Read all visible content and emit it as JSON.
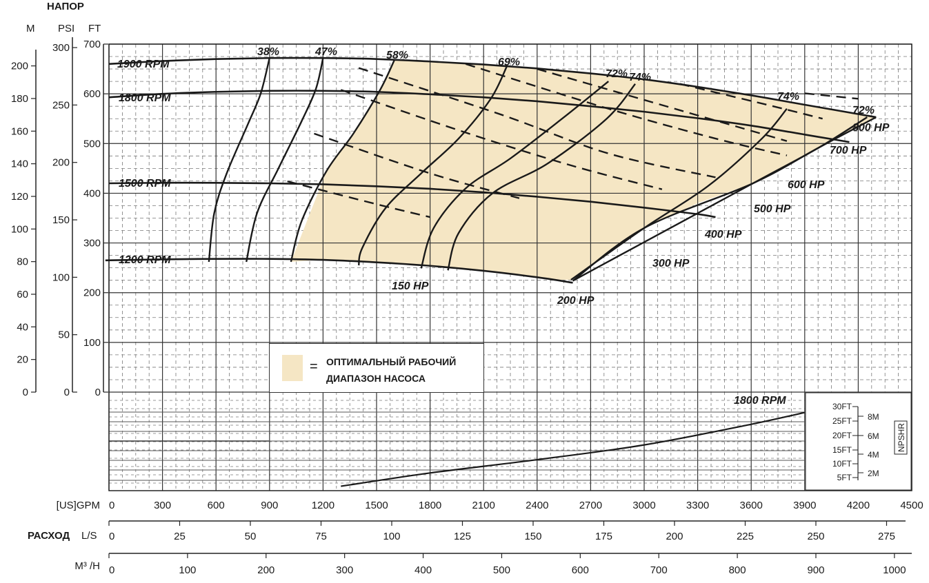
{
  "chart_data": {
    "type": "line",
    "title": "",
    "head_label": "НАПОР",
    "flow_label": "РАСХОД",
    "head_units": {
      "m": "M",
      "psi": "PSI",
      "ft": "FT"
    },
    "flow_units": {
      "gpm": "[US]GPM",
      "ls": "L/S",
      "m3h": "M³ /H"
    },
    "xlim_gpm": [
      0,
      4500
    ],
    "ylim_ft": [
      0,
      700
    ],
    "grid": true,
    "ft_ticks": [
      "0",
      "100",
      "200",
      "300",
      "400",
      "500",
      "600",
      "700"
    ],
    "ft_tick_values": [
      0,
      100,
      200,
      300,
      400,
      500,
      600,
      700
    ],
    "psi_ticks": [
      "0",
      "50",
      "100",
      "150",
      "200",
      "250",
      "300"
    ],
    "psi_tick_values": [
      0,
      50,
      100,
      150,
      200,
      250,
      300
    ],
    "m_ticks": [
      "0",
      "20",
      "40",
      "60",
      "80",
      "100",
      "120",
      "140",
      "160",
      "180",
      "200"
    ],
    "m_tick_values": [
      0,
      20,
      40,
      60,
      80,
      100,
      120,
      140,
      160,
      180,
      200
    ],
    "gpm_ticks": [
      "0",
      "300",
      "600",
      "900",
      "1200",
      "1500",
      "1800",
      "2100",
      "2400",
      "2700",
      "3000",
      "3300",
      "3600",
      "3900",
      "4200",
      "4500"
    ],
    "gpm_tick_values": [
      0,
      300,
      600,
      900,
      1200,
      1500,
      1800,
      2100,
      2400,
      2700,
      3000,
      3300,
      3600,
      3900,
      4200,
      4500
    ],
    "ls_ticks": [
      "0",
      "25",
      "50",
      "75",
      "100",
      "125",
      "150",
      "175",
      "200",
      "225",
      "250",
      "275"
    ],
    "ls_tick_values": [
      0,
      25,
      50,
      75,
      100,
      125,
      150,
      175,
      200,
      225,
      250,
      275
    ],
    "m3h_ticks": [
      "0",
      "100",
      "200",
      "300",
      "400",
      "500",
      "600",
      "700",
      "800",
      "900",
      "1000"
    ],
    "m3h_tick_values": [
      0,
      100,
      200,
      300,
      400,
      500,
      600,
      700,
      800,
      900,
      1000
    ],
    "rpm_curves": [
      {
        "name": "1900 RPM",
        "x": [
          0,
          300,
          600,
          900,
          1200,
          1500,
          1800,
          2100,
          2400,
          2700,
          3000,
          3300,
          3600,
          3900,
          4300
        ],
        "y": [
          660,
          666,
          670,
          672,
          672,
          670,
          665,
          659,
          651,
          641,
          629,
          614,
          597,
          578,
          553
        ]
      },
      {
        "name": "1800 RPM",
        "x": [
          0,
          300,
          600,
          900,
          1200,
          1500,
          1800,
          2100,
          2400,
          2700,
          3000,
          3300,
          3600,
          3900,
          4150
        ],
        "y": [
          593,
          600,
          604,
          606,
          606,
          604,
          599,
          593,
          585,
          575,
          564,
          551,
          536,
          518,
          503
        ]
      },
      {
        "name": "1500 RPM",
        "x": [
          0,
          300,
          600,
          900,
          1200,
          1500,
          1800,
          2100,
          2400,
          2700,
          3000,
          3300,
          3400
        ],
        "y": [
          420,
          421,
          421,
          420,
          418,
          414,
          409,
          402,
          393,
          383,
          371,
          358,
          352
        ]
      },
      {
        "name": "1200 RPM",
        "x": [
          -20,
          300,
          600,
          900,
          1200,
          1500,
          1800,
          2100,
          2400,
          2600
        ],
        "y": [
          265,
          267,
          268,
          268,
          266,
          261,
          254,
          244,
          231,
          220
        ]
      }
    ],
    "hp_labels": [
      "150 HP",
      "200 HP",
      "300 HP",
      "400 HP",
      "500 HP",
      "600 HP",
      "700 HP",
      "800 HP"
    ],
    "hp_curves": [
      {
        "name": "150 HP",
        "x": [
          1000,
          1500,
          1800
        ],
        "y": [
          424,
          378,
          352
        ]
      },
      {
        "name": "200 HP",
        "x": [
          1150,
          1800,
          2300
        ],
        "y": [
          520,
          440,
          390
        ]
      },
      {
        "name": "300 HP",
        "x": [
          1300,
          2000,
          2600,
          3100
        ],
        "y": [
          608,
          522,
          455,
          408
        ]
      },
      {
        "name": "400 HP",
        "x": [
          1400,
          2200,
          2800,
          3400
        ],
        "y": [
          652,
          558,
          480,
          432
        ]
      },
      {
        "name": "500 HP",
        "x": [
          2000,
          2800,
          3400,
          3800
        ],
        "y": [
          660,
          570,
          510,
          476
        ]
      },
      {
        "name": "600 HP",
        "x": [
          2400,
          3200,
          3800
        ],
        "y": [
          650,
          567,
          505
        ]
      },
      {
        "name": "700 HP",
        "x": [
          3200,
          3700,
          4000
        ],
        "y": [
          620,
          577,
          550
        ]
      },
      {
        "name": "800 HP",
        "x": [
          3900,
          4200
        ],
        "y": [
          601,
          590
        ]
      }
    ],
    "efficiency_labels": [
      "38%",
      "47%",
      "58%",
      "69%",
      "72%",
      "74%",
      "74%",
      "72%"
    ],
    "efficiency_curves": [
      {
        "name": "38%",
        "x": [
          900,
          850,
          780,
          660,
          590,
          560
        ],
        "y": [
          672,
          600,
          540,
          440,
          360,
          262
        ]
      },
      {
        "name": "47%",
        "x": [
          1200,
          1160,
          1080,
          950,
          830,
          770
        ],
        "y": [
          672,
          610,
          545,
          450,
          360,
          262
        ]
      },
      {
        "name": "58%",
        "x": [
          1600,
          1520,
          1370,
          1220,
          1080,
          1020
        ],
        "y": [
          668,
          608,
          520,
          445,
          344,
          262
        ]
      },
      {
        "name": "69%",
        "x": [
          2230,
          2140,
          1960,
          1750,
          1550,
          1420,
          1400
        ],
        "y": [
          655,
          590,
          510,
          440,
          370,
          290,
          255
        ]
      },
      {
        "name": "72%",
        "x": [
          2800,
          2540,
          2250,
          2000,
          1820,
          1750
        ],
        "y": [
          625,
          550,
          470,
          410,
          330,
          249
        ]
      },
      {
        "name": "74%",
        "x": [
          2950,
          2790,
          2460,
          2150,
          1960,
          1900
        ],
        "y": [
          620,
          550,
          460,
          400,
          320,
          245
        ]
      },
      {
        "name": "74%",
        "x": [
          3800,
          3660,
          3360,
          3000,
          2590
        ],
        "y": [
          570,
          510,
          415,
          330,
          226
        ]
      },
      {
        "name": "72%",
        "x": [
          4250,
          3980,
          3610,
          2600
        ],
        "y": [
          553,
          492,
          420,
          224
        ]
      }
    ],
    "npshr": {
      "rpm": "1800 RPM",
      "label": "NPSHR",
      "ft_ticks": [
        "5FT",
        "10FT",
        "15FT",
        "20FT",
        "25FT",
        "30FT"
      ],
      "m_ticks": [
        "2M",
        "4M",
        "6M",
        "8M"
      ],
      "x": [
        1300,
        1800,
        2400,
        3000,
        3600,
        3900
      ],
      "y_ft": [
        3,
        7.5,
        12,
        17,
        24,
        28
      ]
    },
    "legend": {
      "eq": "=",
      "line1": "ОПТИМАЛЬНЫЙ РАБОЧИЙ",
      "line2": "ДИАПАЗОН НАСОСА"
    },
    "colors": {
      "range_fill": "#f5e6c4",
      "line": "#1a1a1a",
      "grid": "#444444"
    }
  }
}
